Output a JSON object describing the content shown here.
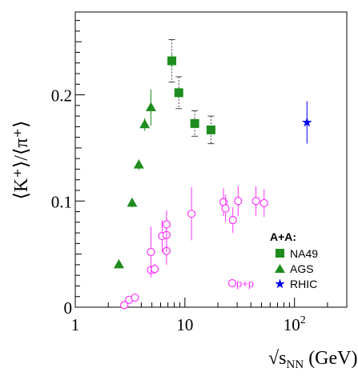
{
  "chart_data": {
    "type": "scatter",
    "title": "",
    "xlabel": {
      "prefix": "√",
      "sub_base": "s",
      "subscript": "NN",
      "suffix": " (GeV)"
    },
    "ylabel": {
      "text": "⟨K⁺⟩/⟨π⁺⟩"
    },
    "xscale": "log",
    "xlim": [
      1,
      300
    ],
    "ylim": [
      0,
      0.278
    ],
    "grid": false,
    "x_ticks": [
      {
        "v": 1,
        "label": "1"
      },
      {
        "v": 10,
        "label": "10"
      },
      {
        "v": 100,
        "label": "10",
        "sup": "2"
      }
    ],
    "y_ticks": [
      {
        "v": 0,
        "label": "0"
      },
      {
        "v": 0.1,
        "label": "0.1"
      },
      {
        "v": 0.2,
        "label": "0.2"
      }
    ],
    "legend": {
      "title": "A+A:",
      "position": "lower-right",
      "entries": [
        {
          "label": "NA49",
          "marker": "square",
          "color": "#1e8c1e"
        },
        {
          "label": "AGS",
          "marker": "triangle",
          "color": "#1e8c1e"
        },
        {
          "label": "RHIC",
          "marker": "star",
          "color": "#0000ee"
        }
      ]
    },
    "annotations": [
      {
        "text": "p+p",
        "marker": "open-circle",
        "color": "#ff33ff"
      }
    ],
    "series": [
      {
        "name": "NA49",
        "marker": "square",
        "color": "#1e8c1e",
        "points": [
          {
            "x": 7.6,
            "y": 0.232,
            "err": 0.006,
            "sys": 0.02
          },
          {
            "x": 8.8,
            "y": 0.202,
            "err": 0.005,
            "sys": 0.015
          },
          {
            "x": 12.3,
            "y": 0.173,
            "err": 0.004,
            "sys": 0.012
          },
          {
            "x": 17.3,
            "y": 0.167,
            "err": 0.004,
            "sys": 0.013
          }
        ]
      },
      {
        "name": "AGS",
        "marker": "triangle",
        "color": "#1e8c1e",
        "points": [
          {
            "x": 2.5,
            "y": 0.04,
            "err": 0.003
          },
          {
            "x": 3.3,
            "y": 0.098,
            "err": 0.004
          },
          {
            "x": 3.8,
            "y": 0.134,
            "err": 0.005
          },
          {
            "x": 4.3,
            "y": 0.172,
            "err": 0.006
          },
          {
            "x": 4.9,
            "y": 0.188,
            "err": 0.017
          }
        ]
      },
      {
        "name": "RHIC",
        "marker": "star",
        "color": "#0000ee",
        "points": [
          {
            "x": 130,
            "y": 0.174,
            "err": 0.02
          }
        ]
      },
      {
        "name": "p+p",
        "marker": "open-circle",
        "color": "#ff33ff",
        "points": [
          {
            "x": 2.8,
            "y": 0.002,
            "err": 0
          },
          {
            "x": 3.1,
            "y": 0.007,
            "err": 0
          },
          {
            "x": 3.5,
            "y": 0.009,
            "err": 0
          },
          {
            "x": 4.9,
            "y": 0.035,
            "err": 0.004
          },
          {
            "x": 4.9,
            "y": 0.052,
            "err": 0.024
          },
          {
            "x": 5.3,
            "y": 0.036,
            "err": 0.005
          },
          {
            "x": 6.2,
            "y": 0.067,
            "err": 0.015
          },
          {
            "x": 6.8,
            "y": 0.053,
            "err": 0.013
          },
          {
            "x": 6.8,
            "y": 0.068,
            "err": 0.016
          },
          {
            "x": 6.8,
            "y": 0.078,
            "err": 0.013
          },
          {
            "x": 11.5,
            "y": 0.088,
            "err": 0.025
          },
          {
            "x": 22.5,
            "y": 0.099,
            "err": 0.013
          },
          {
            "x": 23.5,
            "y": 0.093,
            "err": 0.013
          },
          {
            "x": 27.4,
            "y": 0.082,
            "err": 0.012
          },
          {
            "x": 30.6,
            "y": 0.1,
            "err": 0.014
          },
          {
            "x": 44.5,
            "y": 0.1,
            "err": 0.014
          },
          {
            "x": 52.8,
            "y": 0.098,
            "err": 0.013
          }
        ]
      }
    ]
  }
}
